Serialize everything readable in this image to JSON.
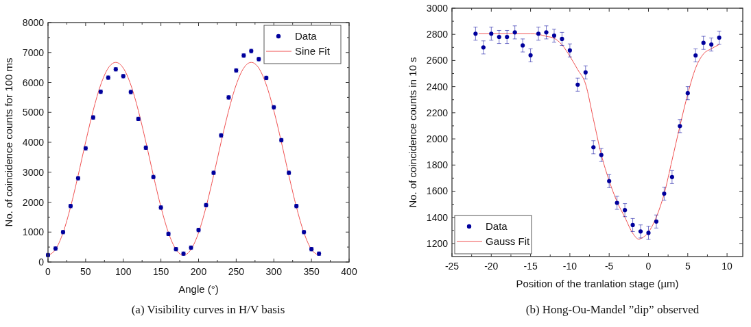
{
  "chart_data": [
    {
      "type": "scatter",
      "title": "(a) Visibility curves in H/V basis",
      "xlabel": "Angle (°)",
      "ylabel": "No. of coincidence counts for 100 ms",
      "xlim": [
        0,
        400
      ],
      "xticks": [
        0,
        50,
        100,
        150,
        200,
        250,
        300,
        350,
        400
      ],
      "ylim": [
        0,
        8000
      ],
      "yticks": [
        0,
        1000,
        2000,
        3000,
        4000,
        5000,
        6000,
        7000,
        8000
      ],
      "legend": "top right",
      "grid": false,
      "marker": "circle",
      "x": [
        0,
        10,
        20,
        30,
        40,
        50,
        60,
        70,
        80,
        90,
        100,
        110,
        120,
        130,
        140,
        150,
        160,
        170,
        180,
        190,
        200,
        210,
        220,
        230,
        240,
        250,
        260,
        270,
        280,
        290,
        300,
        310,
        320,
        330,
        340,
        350,
        360
      ],
      "series": [
        {
          "name": "Data",
          "color": "#00009c",
          "values": [
            230,
            450,
            1000,
            1870,
            2800,
            3800,
            4830,
            5690,
            6160,
            6440,
            6210,
            5680,
            4780,
            3820,
            2840,
            1820,
            940,
            430,
            280,
            480,
            1070,
            1900,
            2980,
            4230,
            5500,
            6400,
            6900,
            7050,
            6780,
            6150,
            5170,
            4070,
            2980,
            1870,
            1000,
            430,
            280
          ],
          "errors": [
            60,
            60,
            60,
            60,
            60,
            60,
            60,
            60,
            60,
            60,
            60,
            60,
            60,
            60,
            60,
            60,
            60,
            60,
            60,
            60,
            60,
            60,
            60,
            60,
            60,
            60,
            60,
            60,
            60,
            60,
            60,
            60,
            60,
            60,
            60,
            60,
            60
          ]
        },
        {
          "name": "Sine Fit",
          "type": "line",
          "color": "#f05050",
          "marker": "none",
          "line_style": "solid",
          "x": [
            0,
            10,
            20,
            30,
            40,
            50,
            60,
            70,
            80,
            90,
            100,
            110,
            120,
            130,
            140,
            150,
            160,
            170,
            180,
            190,
            200,
            210,
            220,
            230,
            240,
            250,
            260,
            270,
            280,
            290,
            300,
            310,
            320,
            330,
            340,
            350,
            360
          ],
          "values": [
            230,
            420,
            980,
            1840,
            2890,
            4010,
            5060,
            5920,
            6480,
            6670,
            6480,
            5920,
            5060,
            4010,
            2890,
            1840,
            980,
            420,
            230,
            420,
            980,
            1840,
            2890,
            4010,
            5060,
            5920,
            6480,
            6670,
            6480,
            5920,
            5060,
            4010,
            2890,
            1840,
            980,
            420,
            230
          ]
        }
      ]
    },
    {
      "type": "scatter",
      "title": "(b) Hong-Ou-Mandel ”dip” observed",
      "xlabel": "Position of the tranlation stage (µm)",
      "ylabel": "No. of coincidence counts in 10 s",
      "xlim": [
        -25,
        12
      ],
      "xticks": [
        -25,
        -20,
        -15,
        -10,
        -5,
        0,
        5,
        10
      ],
      "ylim": [
        1100,
        3000
      ],
      "yticks": [
        1200,
        1400,
        1600,
        1800,
        2000,
        2200,
        2400,
        2600,
        2800,
        3000
      ],
      "legend": "bottom left",
      "grid": false,
      "marker": "circle",
      "x": [
        -22,
        -21,
        -20,
        -19,
        -18,
        -17,
        -16,
        -15,
        -14,
        -13,
        -12,
        -11,
        -10,
        -9,
        -8,
        -7,
        -6,
        -5,
        -4,
        -3,
        -2,
        -1,
        0,
        1,
        2,
        3,
        4,
        5,
        6,
        7,
        8,
        9
      ],
      "series": [
        {
          "name": "Data",
          "color": "#00009c",
          "values": [
            2805,
            2700,
            2805,
            2780,
            2780,
            2815,
            2715,
            2640,
            2805,
            2815,
            2790,
            2765,
            2677,
            2415,
            2509,
            1936,
            1877,
            1677,
            1511,
            1455,
            1341,
            1292,
            1281,
            1368,
            1581,
            1708,
            2098,
            2350,
            2639,
            2735,
            2722,
            2775
          ],
          "errors": [
            50,
            50,
            50,
            50,
            50,
            50,
            50,
            50,
            50,
            50,
            50,
            50,
            50,
            50,
            50,
            50,
            50,
            50,
            50,
            50,
            50,
            50,
            50,
            50,
            50,
            50,
            50,
            50,
            50,
            50,
            50,
            50
          ]
        },
        {
          "name": "Gauss Fit",
          "type": "line",
          "color": "#f05050",
          "marker": "none",
          "line_style": "solid",
          "x": [
            -21.6,
            -18,
            -15,
            -14,
            -13,
            -12,
            -11,
            -10,
            -9,
            -8,
            -7,
            -6,
            -5,
            -4,
            -3,
            -2,
            -1.2,
            -1,
            0,
            1,
            2,
            3,
            4,
            5,
            6,
            7,
            8,
            9
          ],
          "values": [
            2805,
            2805,
            2805,
            2800,
            2785,
            2770,
            2720,
            2632,
            2530,
            2420,
            2150,
            1880,
            1680,
            1520,
            1400,
            1278,
            1232,
            1237,
            1286,
            1402,
            1580,
            1837,
            2098,
            2343,
            2542,
            2650,
            2690,
            2722
          ]
        }
      ]
    }
  ]
}
